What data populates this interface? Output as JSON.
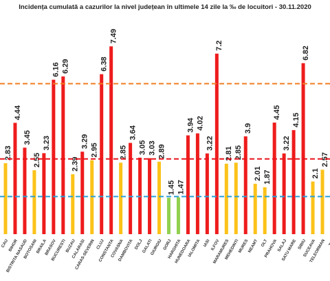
{
  "chart_data": {
    "type": "bar",
    "title": "Incidența cumulată a cazurilor la nivel județean în ultimele 14 zile la ‰ de locuitori - 30.11.2020",
    "categories": [
      "CAU",
      "BIHOR",
      "BISTRITA NASAUD",
      "BOTOSANI",
      "BRAILA",
      "BRASOV",
      "BUCURESTI",
      "BUZAU",
      "CALARASI",
      "CARAS-SEVERIN",
      "CLUJ",
      "CONSTANTA",
      "COVASNA",
      "DAMBOVITA",
      "DOLJ",
      "GALATI",
      "GIURGIU",
      "GORJ",
      "HARGHITA",
      "HUNEDOARA",
      "IALOMITA",
      "IASI",
      "ILFOV",
      "MARAMURES",
      "MEHEDINTI",
      "MURES",
      "NEAMT",
      "OLT",
      "PRAHOVA",
      "SALAJ",
      "SATU MARE",
      "SIBIU",
      "SUCEAVA",
      "TELEORMAN",
      "TIM"
    ],
    "values": [
      2.83,
      4.44,
      3.45,
      2.55,
      3.23,
      6.16,
      6.29,
      2.39,
      3.29,
      2.95,
      6.38,
      7.49,
      2.85,
      3.64,
      3.05,
      3.03,
      2.89,
      1.45,
      1.47,
      3.94,
      4.02,
      3.22,
      7.2,
      2.81,
      2.85,
      3.9,
      2.01,
      1.87,
      4.45,
      3.22,
      4.15,
      6.82,
      2.1,
      2.57,
      null
    ],
    "colors": [
      "#fbc219",
      "#ee1c1c",
      "#ee1c1c",
      "#fbc219",
      "#ee1c1c",
      "#ee1c1c",
      "#ee1c1c",
      "#fbc219",
      "#ee1c1c",
      "#fbc219",
      "#ee1c1c",
      "#ee1c1c",
      "#fbc219",
      "#ee1c1c",
      "#ee1c1c",
      "#ee1c1c",
      "#fbc219",
      "#92d050",
      "#92d050",
      "#ee1c1c",
      "#ee1c1c",
      "#ee1c1c",
      "#ee1c1c",
      "#fbc219",
      "#fbc219",
      "#ee1c1c",
      "#fbc219",
      "#fbc219",
      "#ee1c1c",
      "#ee1c1c",
      "#ee1c1c",
      "#ee1c1c",
      "#fbc219",
      "#fbc219",
      "#fbc219"
    ],
    "ylim": [
      0,
      8.24
    ],
    "reference_lines": [
      {
        "value": 6,
        "color": "#f07c22"
      },
      {
        "value": 3,
        "color": "#e8141c"
      },
      {
        "value": 1.5,
        "color": "#2a9fd8"
      }
    ]
  }
}
